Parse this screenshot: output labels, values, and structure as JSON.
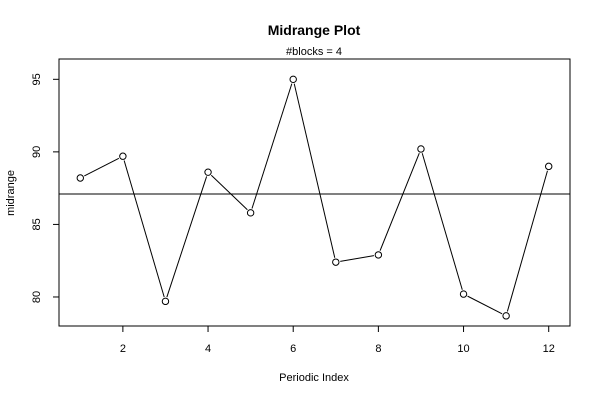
{
  "chart_data": {
    "type": "line",
    "title": "Midrange Plot",
    "subtitle": "#blocks =  4",
    "xlabel": "Periodic Index",
    "ylabel": "midrange",
    "x": [
      1,
      2,
      3,
      4,
      5,
      6,
      7,
      8,
      9,
      10,
      11,
      12
    ],
    "values": [
      88.2,
      89.7,
      79.7,
      88.6,
      85.8,
      95.0,
      82.4,
      82.9,
      90.2,
      80.2,
      78.7,
      89.0
    ],
    "reference_line": 87.1,
    "xlim": [
      0.5,
      12.5
    ],
    "ylim": [
      78.0,
      96.4
    ],
    "x_ticks": [
      2,
      4,
      6,
      8,
      10,
      12
    ],
    "y_ticks": [
      80,
      85,
      90,
      95
    ],
    "grid": false,
    "colors": {
      "line": "#000000",
      "marker_fill": "#ffffff"
    }
  }
}
